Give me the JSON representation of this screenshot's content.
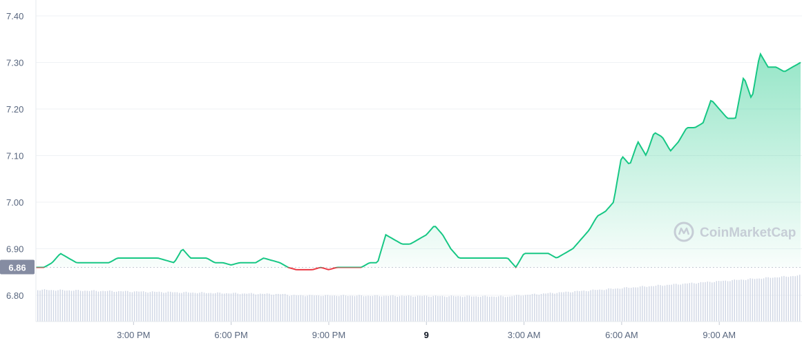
{
  "chart_data": {
    "type": "area",
    "price_series": {
      "t": [
        12.0,
        12.25,
        12.5,
        12.75,
        13.0,
        13.25,
        13.5,
        13.75,
        14.0,
        14.25,
        14.5,
        14.75,
        15.0,
        15.25,
        15.5,
        15.75,
        16.0,
        16.25,
        16.5,
        16.75,
        17.0,
        17.25,
        17.5,
        17.75,
        18.0,
        18.25,
        18.5,
        18.75,
        19.0,
        19.25,
        19.5,
        19.75,
        20.0,
        20.25,
        20.5,
        20.75,
        21.0,
        21.25,
        21.5,
        21.75,
        22.0,
        22.25,
        22.5,
        22.75,
        23.0,
        23.25,
        23.5,
        23.75,
        24.0,
        24.25,
        24.5,
        24.75,
        25.0,
        25.25,
        25.5,
        25.75,
        26.0,
        26.25,
        26.5,
        26.75,
        27.0,
        27.25,
        27.5,
        27.75,
        28.0,
        28.25,
        28.5,
        28.75,
        29.0,
        29.25,
        29.5,
        29.75,
        30.0,
        30.25,
        30.5,
        30.75,
        31.0,
        31.25,
        31.5,
        31.75,
        32.0,
        32.25,
        32.5,
        32.75,
        33.0,
        33.25,
        33.5,
        33.75,
        34.0,
        34.25,
        34.5,
        34.75,
        35.0,
        35.25,
        35.5
      ],
      "price": [
        6.86,
        6.86,
        6.87,
        6.89,
        6.88,
        6.87,
        6.87,
        6.87,
        6.87,
        6.87,
        6.88,
        6.88,
        6.88,
        6.88,
        6.88,
        6.88,
        6.875,
        6.87,
        6.9,
        6.88,
        6.88,
        6.88,
        6.87,
        6.87,
        6.865,
        6.87,
        6.87,
        6.87,
        6.88,
        6.875,
        6.87,
        6.86,
        6.855,
        6.855,
        6.855,
        6.86,
        6.855,
        6.86,
        6.86,
        6.86,
        6.86,
        6.87,
        6.87,
        6.93,
        6.92,
        6.91,
        6.91,
        6.92,
        6.93,
        6.95,
        6.93,
        6.9,
        6.88,
        6.88,
        6.88,
        6.88,
        6.88,
        6.88,
        6.88,
        6.86,
        6.89,
        6.89,
        6.89,
        6.89,
        6.88,
        6.89,
        6.9,
        6.92,
        6.94,
        6.97,
        6.98,
        7.0,
        7.1,
        7.08,
        7.13,
        7.1,
        7.15,
        7.14,
        7.11,
        7.13,
        7.16,
        7.16,
        7.17,
        7.22,
        7.2,
        7.18,
        7.18,
        7.27,
        7.22,
        7.32,
        7.29,
        7.29,
        7.28,
        7.29,
        7.3
      ]
    },
    "reference_price": "6.86",
    "volume_bars_present": true,
    "title": "",
    "xlabel": "",
    "ylabel": "",
    "y_ticks": [
      "7.40",
      "7.30",
      "7.20",
      "7.10",
      "7.00",
      "6.90",
      "6.80"
    ],
    "y_tick_values": [
      7.4,
      7.3,
      7.2,
      7.1,
      7.0,
      6.9,
      6.8
    ],
    "ylim": [
      6.75,
      7.42
    ],
    "x_ticks": [
      {
        "label": "3:00 PM",
        "t": 15,
        "bold": false
      },
      {
        "label": "6:00 PM",
        "t": 18,
        "bold": false
      },
      {
        "label": "9:00 PM",
        "t": 21,
        "bold": false
      },
      {
        "label": "9",
        "t": 24,
        "bold": true
      },
      {
        "label": "3:00 AM",
        "t": 27,
        "bold": false
      },
      {
        "label": "6:00 AM",
        "t": 30,
        "bold": false
      },
      {
        "label": "9:00 AM",
        "t": 33,
        "bold": false
      }
    ],
    "xlim": [
      12.0,
      35.5
    ],
    "grid": true,
    "colors": {
      "up": "#16c784",
      "down": "#ea3943",
      "volume": "#cfd6e4",
      "grid": "#eff2f5",
      "ref_label_bg": "#858ca2"
    }
  },
  "watermark": {
    "text": "CoinMarketCap"
  }
}
